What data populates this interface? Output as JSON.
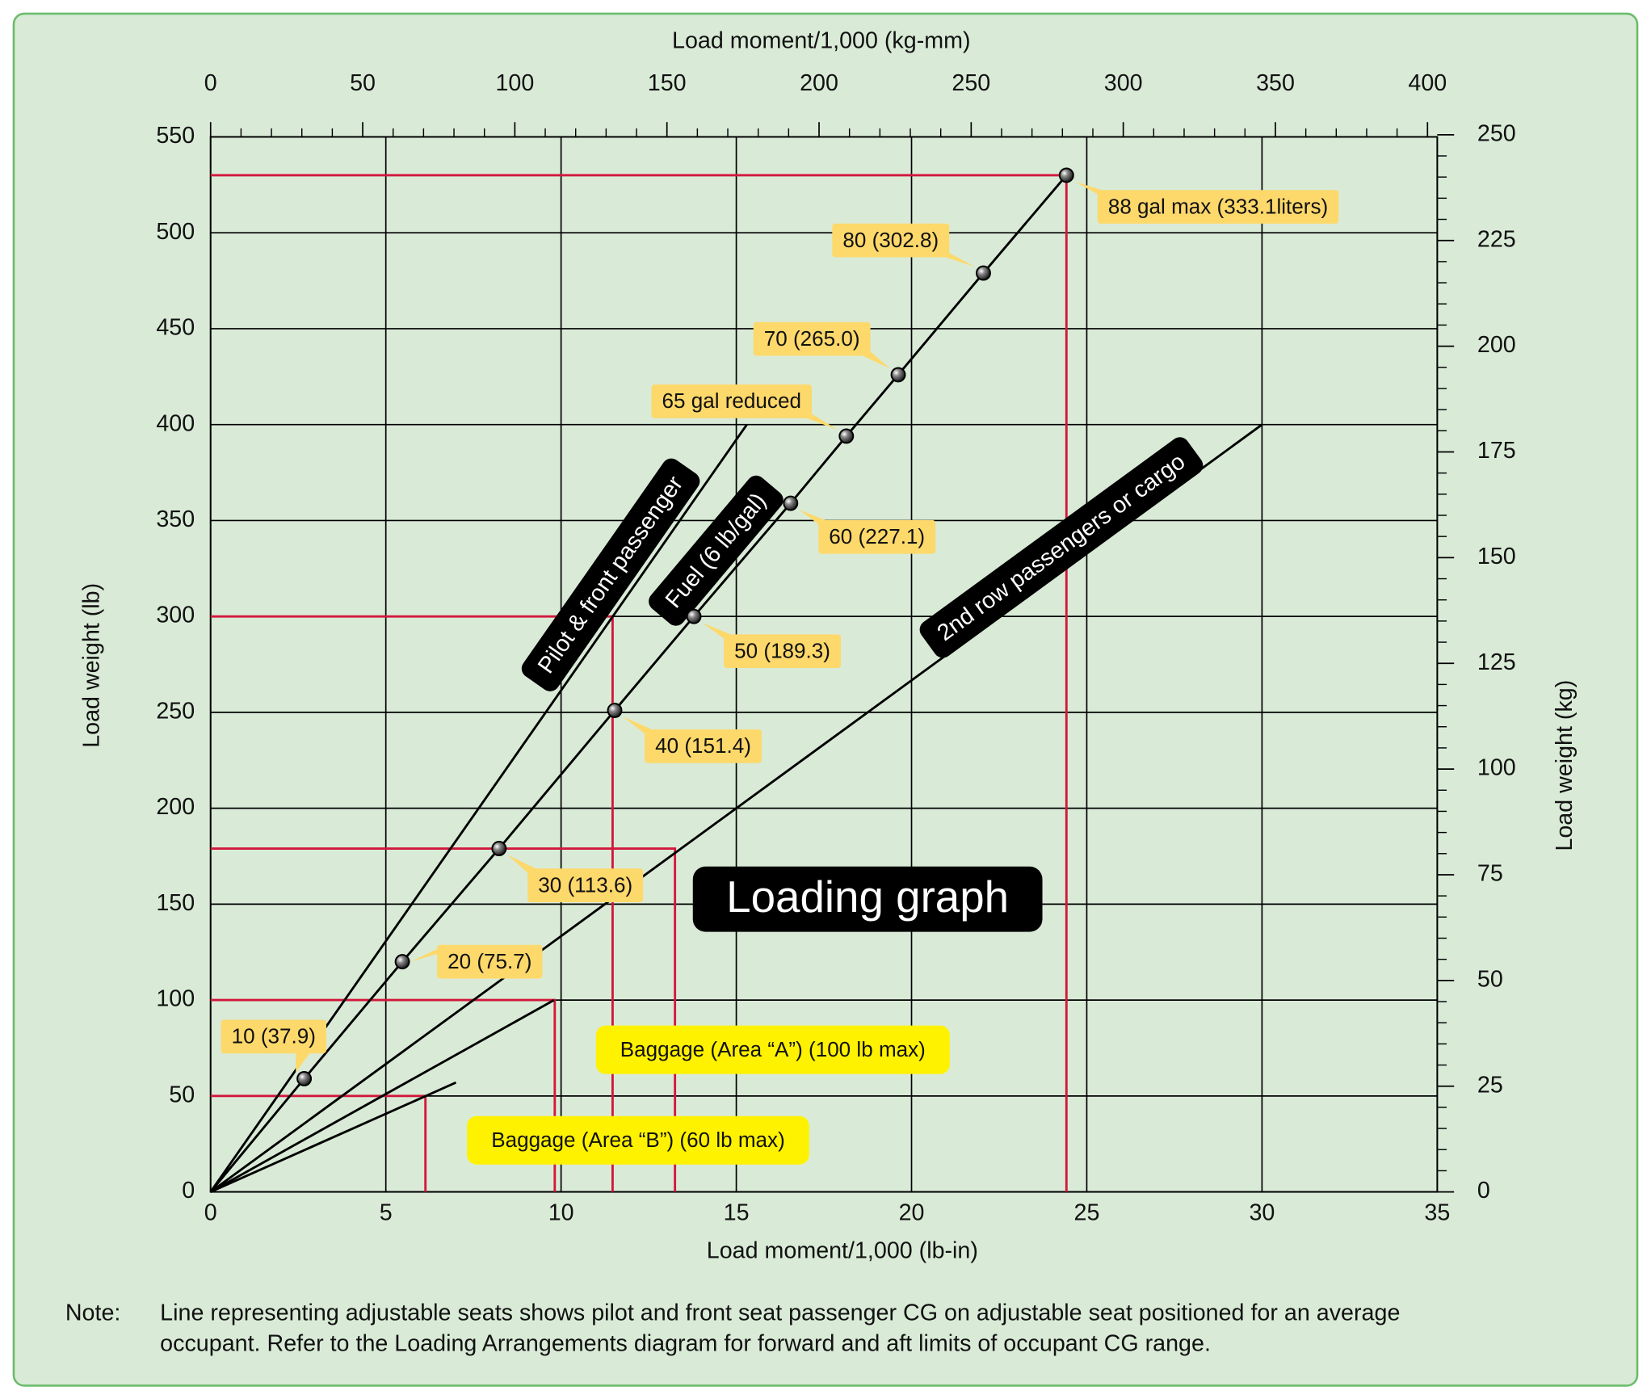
{
  "chart_data": {
    "type": "line",
    "title": "Loading graph",
    "xlabel": "Load moment/1,000 (lb-in)",
    "ylabel": "Load weight (lb)",
    "x2label": "Load moment/1,000 (kg-mm)",
    "y2label": "Load weight (kg)",
    "xlim": [
      0,
      35
    ],
    "xticks": [
      0,
      5,
      10,
      15,
      20,
      25,
      30,
      35
    ],
    "ylim": [
      0,
      550
    ],
    "yticks": [
      0,
      50,
      100,
      150,
      200,
      250,
      300,
      350,
      400,
      450,
      500,
      550
    ],
    "x2lim": [
      0,
      403.2
    ],
    "x2ticks": [
      0,
      50,
      100,
      150,
      200,
      250,
      300,
      350,
      400
    ],
    "x2minor_ticks": [
      10,
      20,
      30,
      40,
      60,
      70,
      80,
      90,
      110,
      120,
      130,
      140,
      160,
      170,
      180,
      190,
      210,
      220,
      230,
      240,
      260,
      270,
      280,
      290,
      310,
      320,
      330,
      340,
      360,
      370,
      380,
      390
    ],
    "y2lim": [
      0,
      249.5
    ],
    "y2ticks": [
      0,
      25,
      50,
      75,
      100,
      125,
      150,
      175,
      200,
      225,
      250
    ],
    "y2minor_ticks": [
      5,
      10,
      15,
      20,
      30,
      35,
      40,
      45,
      55,
      60,
      65,
      70,
      80,
      85,
      90,
      95,
      105,
      110,
      115,
      120,
      130,
      135,
      140,
      145,
      155,
      160,
      165,
      170,
      180,
      185,
      190,
      195,
      205,
      210,
      215,
      220,
      230,
      235,
      240,
      245
    ],
    "grid": true,
    "series": [
      {
        "name": "Pilot & front passenger",
        "color": "#000000",
        "tag_color": "#000000",
        "x": [
          0,
          15.3
        ],
        "values": [
          0,
          400
        ]
      },
      {
        "name": "Fuel (6 lb/gal)",
        "color": "#000000",
        "tag_color": "#000000",
        "label_color": "#fdd86b",
        "x": [
          0,
          2.67,
          5.47,
          8.23,
          11.53,
          13.79,
          16.55,
          18.14,
          19.62,
          22.05,
          24.42
        ],
        "values": [
          0,
          59,
          120,
          179,
          251,
          300,
          359,
          394,
          426,
          479,
          530
        ],
        "point_labels": [
          null,
          "10 (37.9)",
          "20 (75.7)",
          "30 (113.6)",
          "40 (151.4)",
          "50 (189.3)",
          "60 (227.1)",
          "65 gal reduced",
          "70 (265.0)",
          "80 (302.8)",
          "88 gal max (333.1liters)"
        ]
      },
      {
        "name": "2nd row passengers or cargo",
        "color": "#000000",
        "tag_color": "#000000",
        "x": [
          0,
          30
        ],
        "values": [
          0,
          400
        ]
      },
      {
        "name": "Baggage (Area “A”) (100 lb max)",
        "color": "#000000",
        "tag_color": "#fff200",
        "x": [
          0,
          9.8
        ],
        "values": [
          0,
          100
        ]
      },
      {
        "name": "Baggage (Area “B”) (60 lb max)",
        "color": "#000000",
        "tag_color": "#fff200",
        "x": [
          0,
          7
        ],
        "values": [
          0,
          57
        ]
      }
    ],
    "reference_lines": {
      "color": "#d2183c",
      "points": [
        {
          "x": 24.42,
          "y": 530
        },
        {
          "x": 11.47,
          "y": 300
        },
        {
          "x": 13.25,
          "y": 179
        },
        {
          "x": 9.82,
          "y": 100
        },
        {
          "x": 6.13,
          "y": 50
        }
      ]
    },
    "note_label": "Note:",
    "note": "Line representing adjustable seats shows pilot and front seat passenger CG on adjustable seat positioned for an average occupant. Refer to the Loading Arrangements diagram for forward and aft limits of occupant CG range."
  }
}
